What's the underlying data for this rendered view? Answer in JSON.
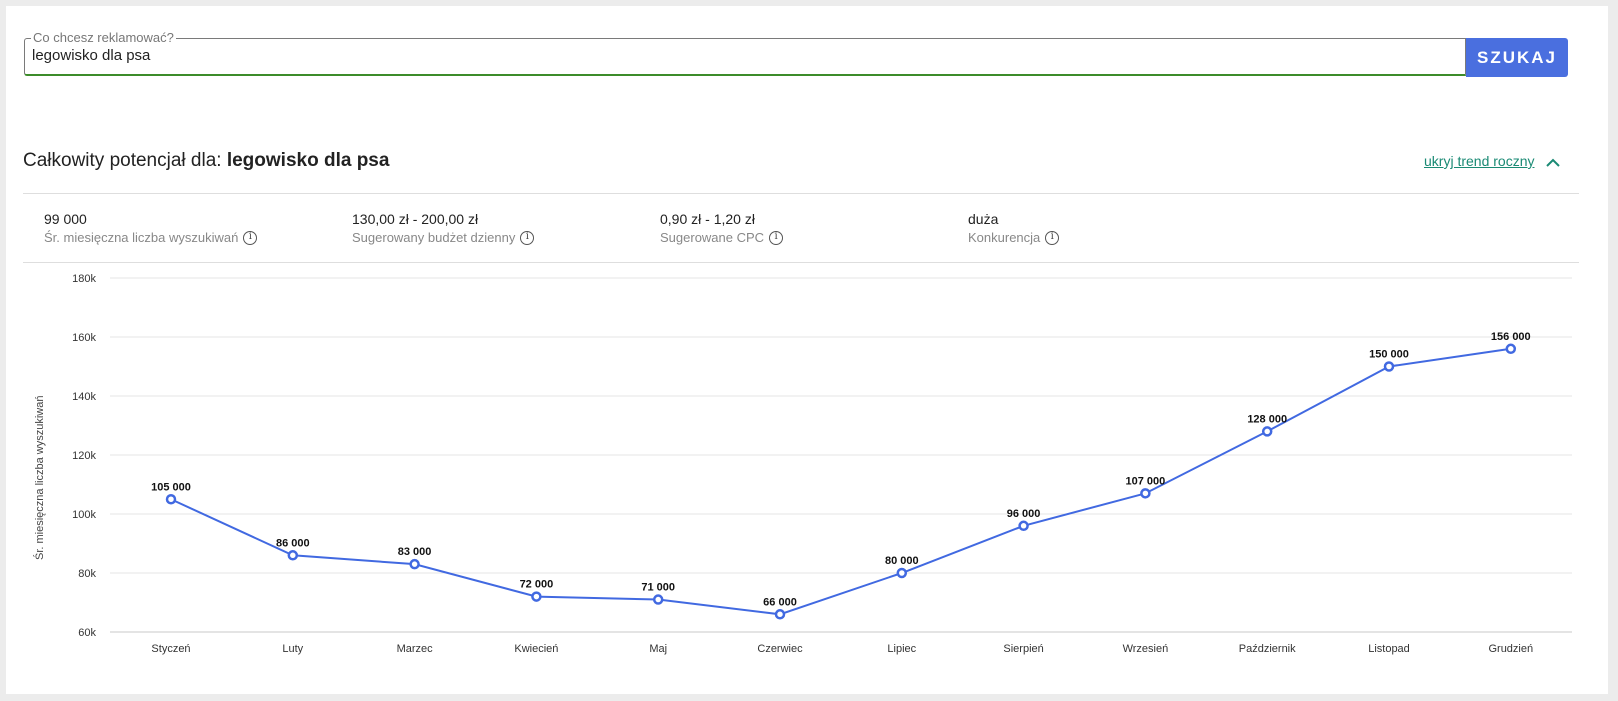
{
  "search": {
    "legend": "Co chcesz reklamować?",
    "value": "legowisko dla psa",
    "button_label": "SZUKAJ"
  },
  "header": {
    "title_prefix": "Całkowity potencjał dla: ",
    "title_keyword": "legowisko dla psa",
    "toggle_label": "ukryj trend roczny"
  },
  "stats": [
    {
      "value": "99 000",
      "label": "Śr. miesięczna liczba wyszukiwań"
    },
    {
      "value": "130,00 zł - 200,00 zł",
      "label": "Sugerowany budżet dzienny"
    },
    {
      "value": "0,90 zł - 1,20 zł",
      "label": "Sugerowane CPC"
    },
    {
      "value": "duża",
      "label": "Konkurencja"
    }
  ],
  "colors": {
    "accent": "#4a6fdf",
    "line": "#4169e1",
    "link": "#1a8a74",
    "focus_border": "#3c8c2a"
  },
  "chart_data": {
    "type": "line",
    "categories": [
      "Styczeń",
      "Luty",
      "Marzec",
      "Kwiecień",
      "Maj",
      "Czerwiec",
      "Lipiec",
      "Sierpień",
      "Wrzesień",
      "Październik",
      "Listopad",
      "Grudzień"
    ],
    "values": [
      105000,
      86000,
      83000,
      72000,
      71000,
      66000,
      80000,
      96000,
      107000,
      128000,
      150000,
      156000
    ],
    "value_labels": [
      "105 000",
      "86 000",
      "83 000",
      "72 000",
      "71 000",
      "66 000",
      "80 000",
      "96 000",
      "107 000",
      "128 000",
      "150 000",
      "156 000"
    ],
    "ylabel": "Śr. miesięczna liczba wyszukiwań",
    "ylim": [
      60000,
      180000
    ],
    "yticks": [
      60000,
      80000,
      100000,
      120000,
      140000,
      160000,
      180000
    ],
    "ytick_labels": [
      "60k",
      "80k",
      "100k",
      "120k",
      "140k",
      "160k",
      "180k"
    ],
    "grid": true
  }
}
